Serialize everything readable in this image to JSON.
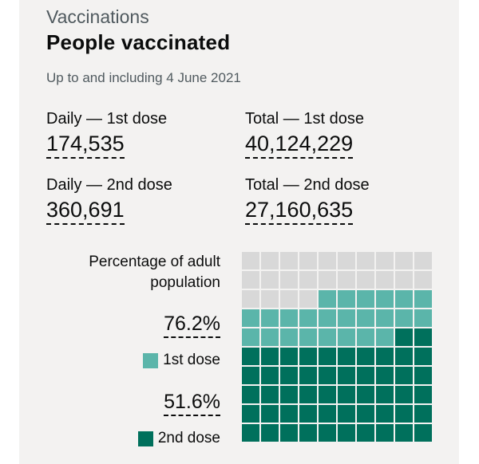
{
  "header": {
    "caption": "Vaccinations",
    "title": "People vaccinated",
    "as_of": "Up to and including 4 June 2021"
  },
  "stats": [
    {
      "label": "Daily — 1st dose",
      "value": "174,535"
    },
    {
      "label": "Total — 1st dose",
      "value": "40,124,229"
    },
    {
      "label": "Daily — 2nd dose",
      "value": "360,691"
    },
    {
      "label": "Total — 2nd dose",
      "value": "27,160,635"
    }
  ],
  "waffle": {
    "label": "Percentage of adult population",
    "first_dose_pct": "76.2%",
    "second_dose_pct": "51.6%",
    "legend_first": "1st dose",
    "legend_second": "2nd dose",
    "first_dose_fraction": 0.762,
    "second_dose_fraction": 0.516,
    "colors": {
      "empty": "#d8d8d8",
      "first": "#5bb5aa",
      "second": "#00705c"
    }
  }
}
